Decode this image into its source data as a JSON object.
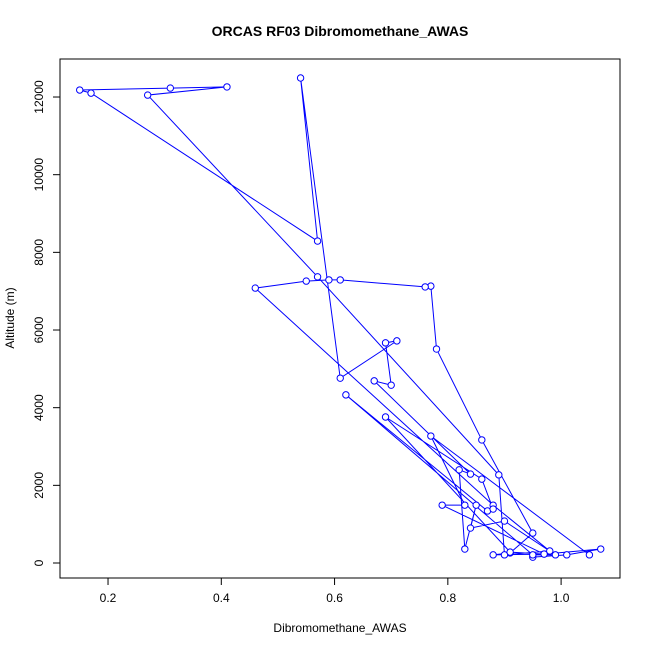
{
  "chart_data": {
    "type": "line",
    "title": "ORCAS RF03 Dibromomethane_AWAS",
    "xlabel": "Dibromomethane_AWAS",
    "ylabel": "Altitude (m)",
    "color": "#0000ff",
    "x": [
      0.95,
      1.01,
      1.07,
      0.97,
      0.88,
      0.91,
      0.95,
      0.86,
      0.78,
      0.77,
      0.76,
      0.61,
      0.59,
      0.55,
      0.46,
      0.88,
      0.98,
      0.9,
      0.89,
      0.57,
      0.27,
      0.41,
      0.31,
      0.15,
      0.17,
      0.57,
      0.54,
      0.61,
      0.71,
      0.69,
      0.7,
      0.67,
      0.84,
      0.82,
      0.83,
      0.85,
      0.84,
      0.9,
      0.99,
      0.95,
      0.62,
      0.87,
      0.88,
      0.86,
      0.69,
      0.91,
      0.97,
      0.79,
      0.83,
      0.77,
      1.05
    ],
    "values": [
      150,
      210,
      360,
      230,
      210,
      260,
      770,
      3170,
      5510,
      7130,
      7110,
      7290,
      7290,
      7260,
      7080,
      1490,
      310,
      210,
      2270,
      7370,
      12050,
      12260,
      12230,
      12180,
      12100,
      8290,
      12490,
      4760,
      5720,
      5670,
      4580,
      4690,
      2290,
      2400,
      360,
      1490,
      900,
      1080,
      210,
      210,
      4330,
      1340,
      1390,
      2160,
      3760,
      280,
      230,
      1490,
      1490,
      3270,
      210
    ],
    "xlim": [
      0.1152,
      1.104
    ],
    "ylim": [
      -386,
      12979
    ],
    "xticks": [
      0.2,
      0.4,
      0.6,
      0.8,
      {
        "value": 1,
        "label": "1.0"
      }
    ],
    "yticks": [
      0,
      2000,
      4000,
      6000,
      8000,
      10000,
      12000
    ]
  }
}
